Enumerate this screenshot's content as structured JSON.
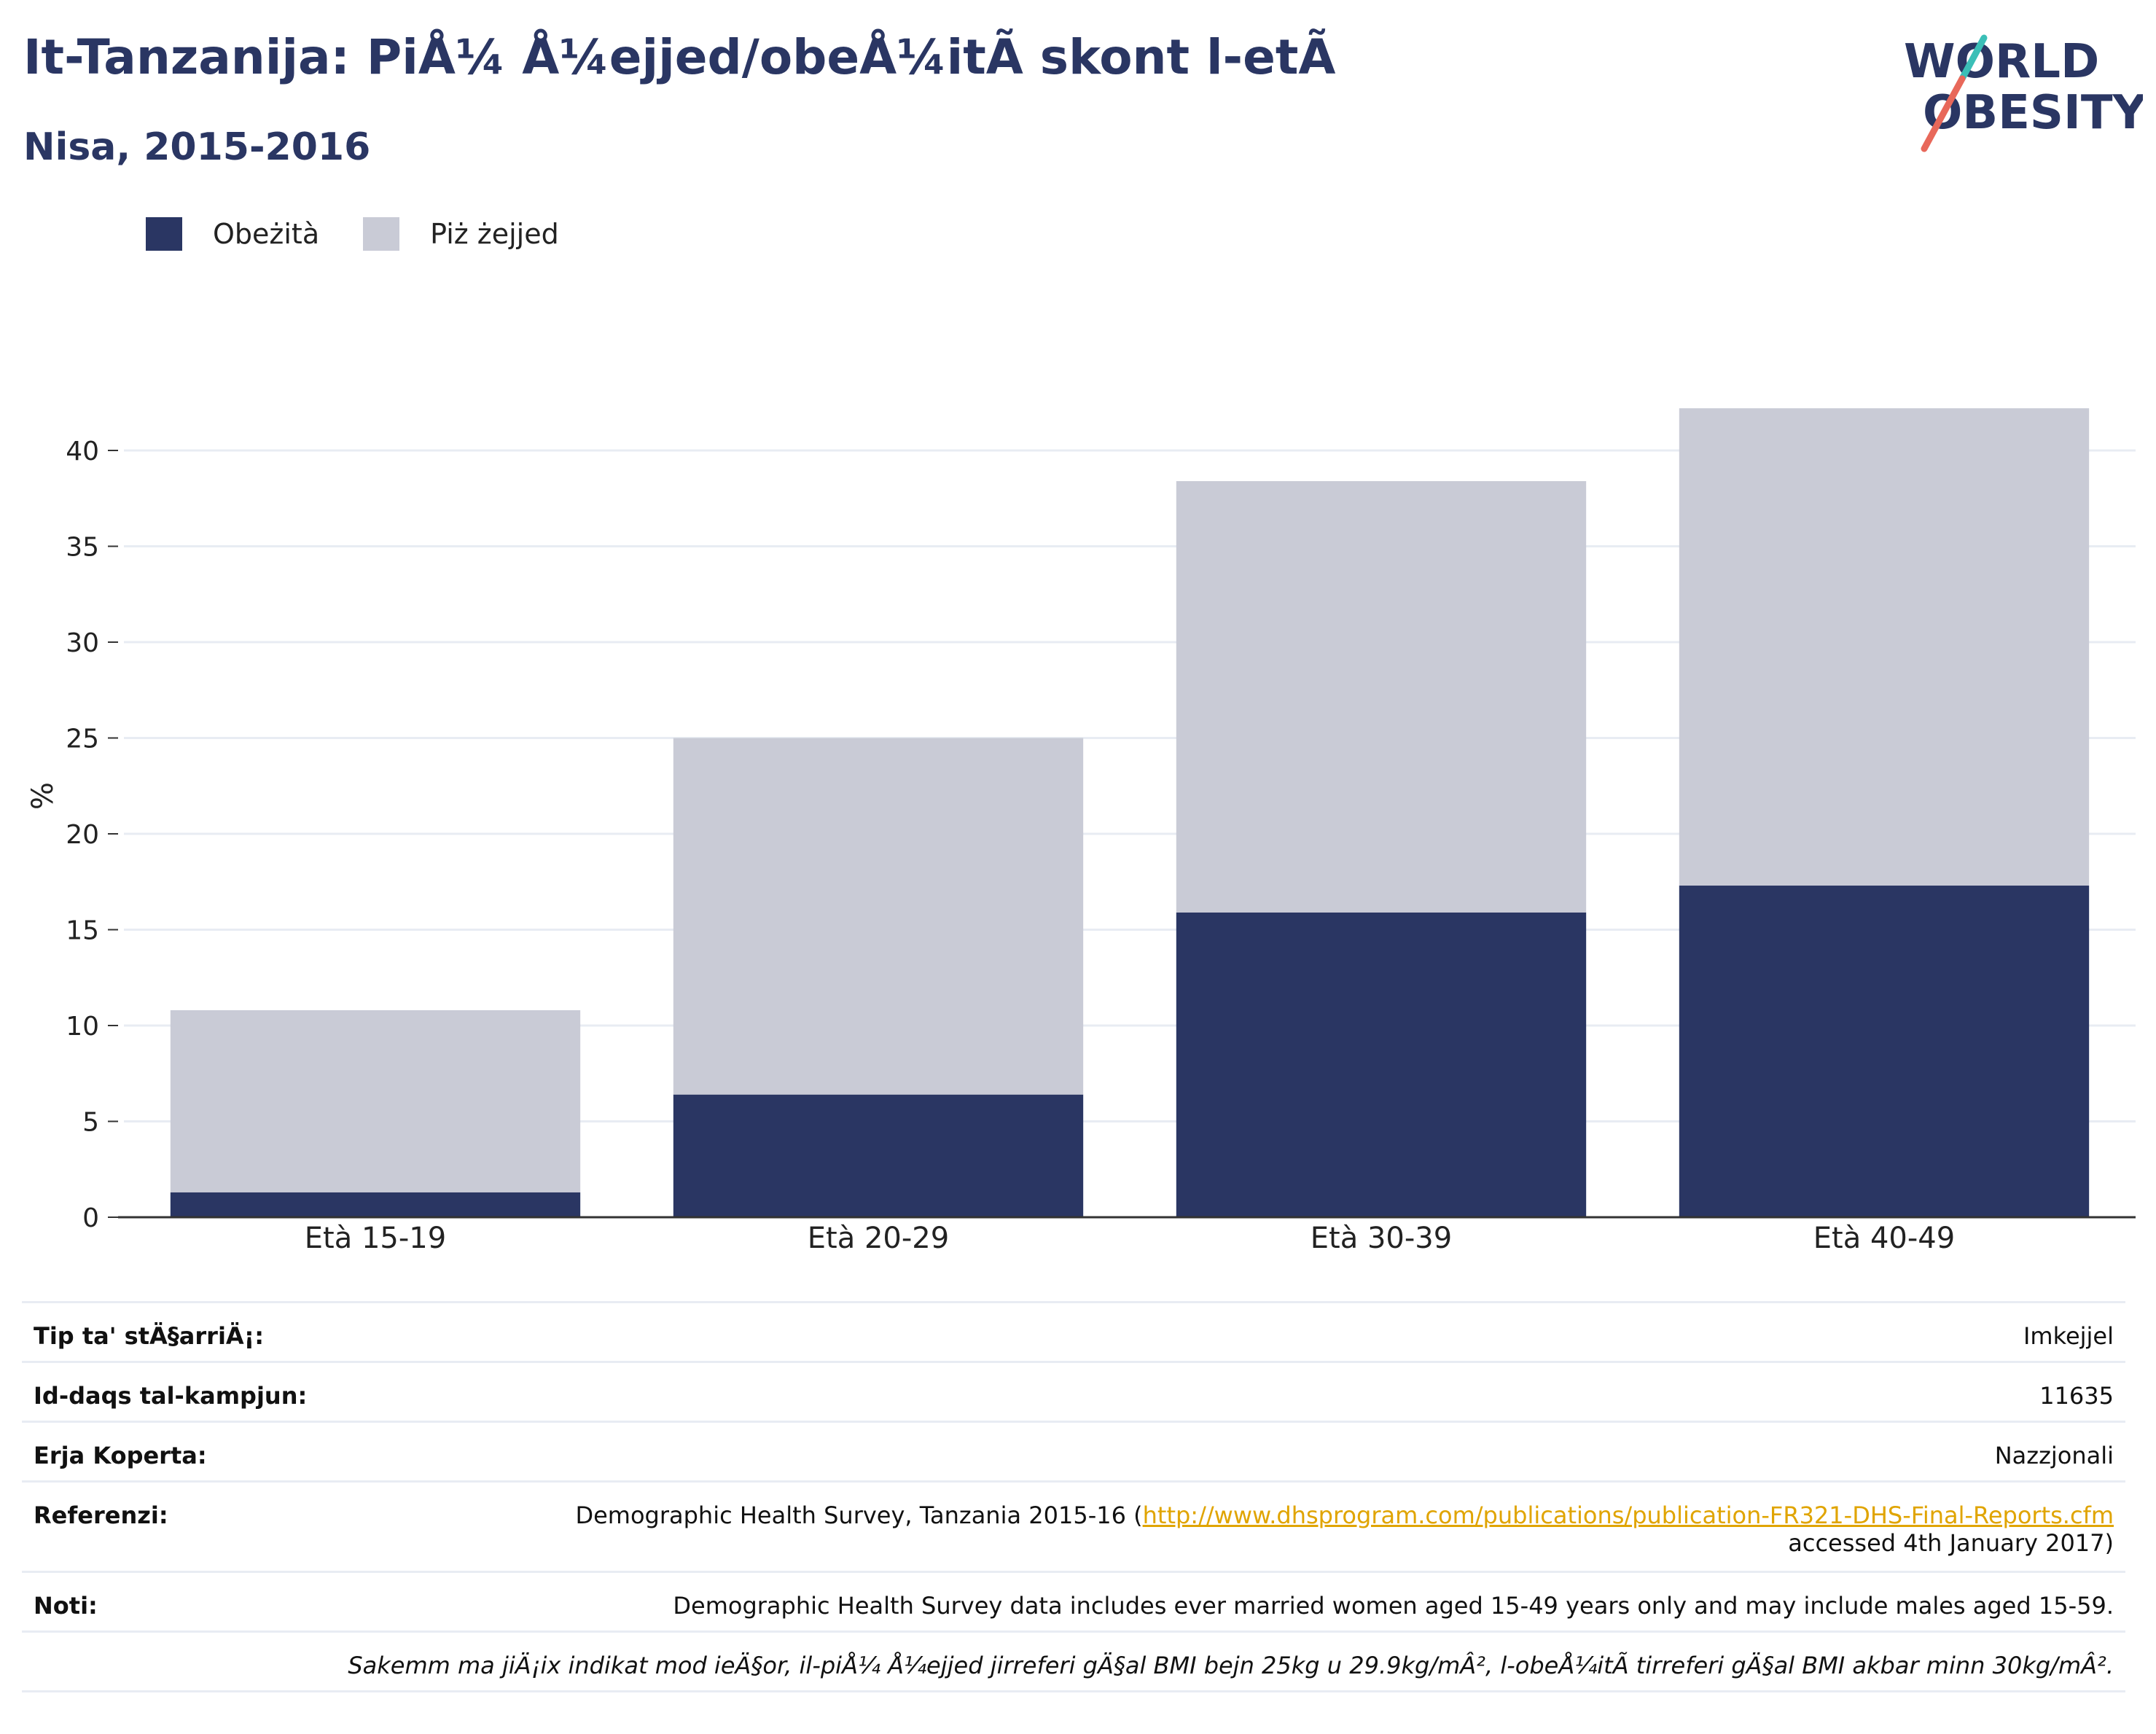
{
  "header": {
    "title": "It-Tanzanija: PiÅ¼ Å¼ejjed/obeÅ¼itÃ  skont l-etÃ",
    "subtitle": "Nisa, 2015-2016"
  },
  "logo": {
    "line1": "WORLD",
    "line2": "OBESITY",
    "colors": {
      "text": "#2a3663",
      "slash_top": "#3bbfb7",
      "slash_bottom": "#e8685a"
    }
  },
  "colors": {
    "obesity": "#2a3663",
    "overweight": "#c9cbd6",
    "grid": "#e8ecf3",
    "axis": "#333333"
  },
  "chart_data": {
    "type": "bar",
    "stacked": true,
    "categories": [
      "Età 15-19",
      "Età 20-29",
      "Età 30-39",
      "Età 40-49"
    ],
    "series": [
      {
        "name": "Obeżità",
        "values": [
          1.3,
          6.4,
          15.9,
          17.3
        ]
      },
      {
        "name": "Piż żejjed",
        "values": [
          9.5,
          18.6,
          22.5,
          24.9
        ]
      }
    ],
    "totals": [
      10.8,
      25.0,
      38.4,
      42.2
    ],
    "ylabel": "%",
    "xlabel": "",
    "ylim": [
      0,
      45
    ],
    "yticks": [
      0,
      5,
      10,
      15,
      20,
      25,
      30,
      35,
      40
    ],
    "grid": true,
    "legend": "top-left"
  },
  "info": {
    "rows": [
      {
        "label": "Tip ta' stÄ§arriÄ¡:",
        "value": "Imkejjel"
      },
      {
        "label": "Id-daqs tal-kampjun:",
        "value": "11635"
      },
      {
        "label": "Erja Koperta:",
        "value": "Nazzjonali"
      }
    ],
    "reference": {
      "label": "Referenzi:",
      "text": "Demographic Health Survey, Tanzania 2015-16 (",
      "link": "http://www.dhsprogram.com/publications/publication-FR321-DHS-Final-Reports.cfm",
      "tail": "accessed 4th January 2017)"
    },
    "notes": {
      "label": "Noti:",
      "text": "Demographic Health Survey data includes ever married women aged 15-49 years only and may include males aged 15-59.",
      "definition": "Sakemm ma jiÄ¡ix indikat mod ieÄ§or, il-piÅ¼ Å¼ejjed jirreferi gÄ§al BMI bejn 25kg u 29.9kg/mÂ², l-obeÅ¼itÃ  tirreferi gÄ§al BMI akbar minn 30kg/mÂ²."
    }
  }
}
